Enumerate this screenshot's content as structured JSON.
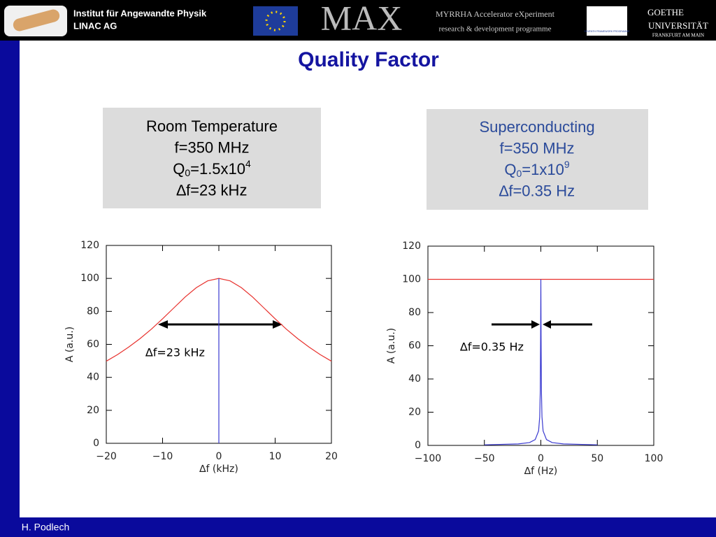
{
  "header": {
    "institute": "Institut für Angewandte Physik",
    "group": "LINAC AG",
    "project": "MAX",
    "project_line1": "MYRRHA Accelerator eXperiment",
    "project_line2": "research & development programme",
    "fp7": "SEVENTH FRAMEWORK PROGRAMME",
    "uni1": "GOETHE",
    "uni2": "UNIVERSITÄT",
    "uni3": "FRANKFURT AM MAIN"
  },
  "title": "Quality Factor",
  "boxes": [
    {
      "lines": [
        "Room Temperature",
        "f=350 MHz",
        "∆f=23 kHz"
      ],
      "q": {
        "q": "Q",
        "sub": "0",
        "mid": "=1.5x10",
        "sup": "4"
      }
    },
    {
      "lines": [
        "Superconducting",
        "f=350 MHz",
        "∆f=0.35 Hz"
      ],
      "q": {
        "q": "Q",
        "sub": "0",
        "mid": "=1x10",
        "sup": "9"
      }
    }
  ],
  "chart_data": [
    {
      "type": "line",
      "xlabel": "∆f  (kHz)",
      "ylabel": "A  (a.u.)",
      "annotation": "∆f=23 kHz",
      "xlim": [
        -20,
        20
      ],
      "ylim": [
        0,
        120
      ],
      "xticks": [
        {
          "value": -20,
          "label": "−20"
        },
        {
          "value": -10,
          "label": "−10"
        },
        0,
        10,
        20
      ],
      "yticks": [
        0,
        20,
        40,
        60,
        80,
        100,
        120
      ],
      "series": [
        {
          "color": "#e8322e",
          "x": [
            -20,
            -18,
            -16,
            -14,
            -12,
            -10,
            -8,
            -6,
            -4,
            -2,
            0,
            2,
            4,
            6,
            8,
            10,
            12,
            14,
            16,
            18,
            20
          ],
          "values": [
            49.8,
            53.8,
            58.4,
            63.5,
            69.2,
            75.5,
            82.1,
            88.7,
            94.4,
            98.5,
            100,
            98.5,
            94.4,
            88.7,
            82.1,
            75.5,
            69.2,
            63.5,
            58.4,
            53.8,
            49.8
          ]
        },
        {
          "color": "#3a3ad0",
          "x": [
            0,
            0
          ],
          "values": [
            0,
            100
          ]
        }
      ]
    },
    {
      "type": "line",
      "xlabel": "∆f  (Hz)",
      "ylabel": "A  (a.u.)",
      "annotation": "∆f=0.35 Hz",
      "xlim": [
        -100,
        100
      ],
      "ylim": [
        0,
        120
      ],
      "xticks": [
        {
          "value": -100,
          "label": "−100"
        },
        {
          "value": -50,
          "label": "−50"
        },
        0,
        50,
        100
      ],
      "yticks": [
        0,
        20,
        40,
        60,
        80,
        100,
        120
      ],
      "series": [
        {
          "color": "#e8322e",
          "x": [
            -100,
            100
          ],
          "values": [
            100,
            100
          ]
        },
        {
          "color": "#3a3ad0",
          "x": [
            -50,
            -20,
            -10,
            -5,
            -2,
            -1,
            -0.5,
            -0.2,
            0,
            0.2,
            0.5,
            1,
            2,
            5,
            10,
            20,
            50
          ],
          "values": [
            0.35,
            0.9,
            1.7,
            3.5,
            8.7,
            17.2,
            33,
            66,
            100,
            66,
            33,
            17.2,
            8.7,
            3.5,
            1.7,
            0.9,
            0.35
          ]
        }
      ]
    }
  ],
  "footer": "H. Podlech"
}
